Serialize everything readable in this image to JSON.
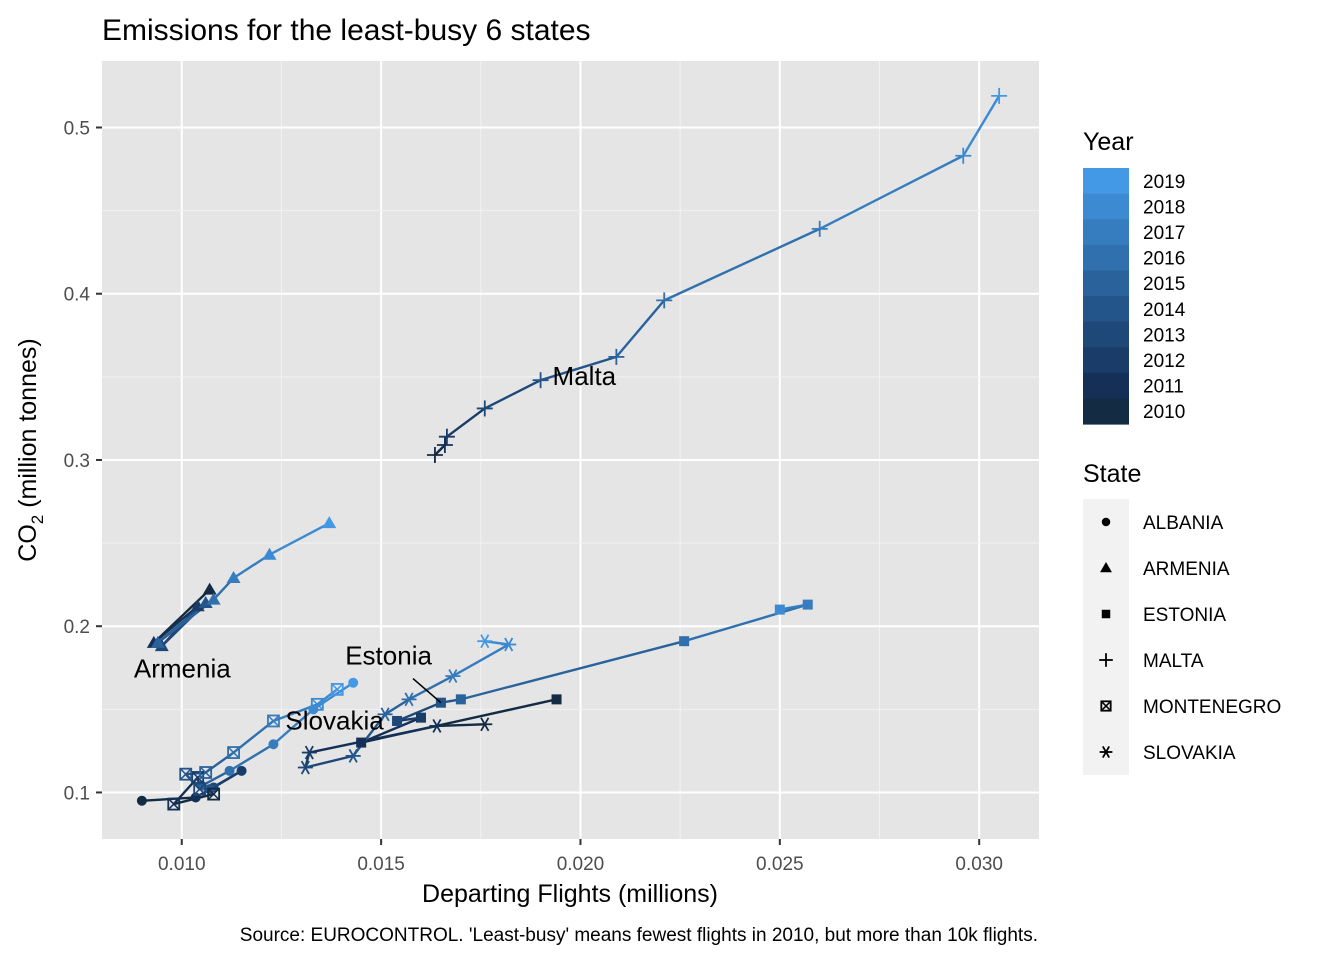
{
  "chart_data": {
    "type": "scatter",
    "title": "Emissions for the least-busy 6 states",
    "xlabel": "Departing Flights (millions)",
    "ylabel_main": "CO",
    "ylabel_sub": "2",
    "ylabel_rest": " (million tonnes)",
    "caption": "Source: EUROCONTROL. 'Least-busy' means fewest flights in 2010, but more than 10k flights.",
    "xlim": [
      0.008,
      0.0315
    ],
    "ylim": [
      0.072,
      0.54
    ],
    "x_ticks": [
      {
        "value": 0.01,
        "label": "0.010"
      },
      {
        "value": 0.015,
        "label": "0.015"
      },
      {
        "value": 0.02,
        "label": "0.020"
      },
      {
        "value": 0.025,
        "label": "0.025"
      },
      {
        "value": 0.03,
        "label": "0.030"
      }
    ],
    "y_ticks": [
      {
        "value": 0.1,
        "label": "0.1"
      },
      {
        "value": 0.2,
        "label": "0.2"
      },
      {
        "value": 0.3,
        "label": "0.3"
      },
      {
        "value": 0.4,
        "label": "0.4"
      },
      {
        "value": 0.5,
        "label": "0.5"
      }
    ],
    "grid": true,
    "color_legend": {
      "title": "Year",
      "years": [
        2019,
        2018,
        2017,
        2016,
        2015,
        2014,
        2013,
        2012,
        2011,
        2010
      ],
      "colors": [
        "#4399e5",
        "#3c8bd2",
        "#367dc0",
        "#3070ae",
        "#2a629c",
        "#24558a",
        "#1e4878",
        "#193c68",
        "#143057",
        "#132b43"
      ]
    },
    "shape_legend": {
      "title": "State",
      "items": [
        {
          "label": "ALBANIA",
          "shape": "circle"
        },
        {
          "label": "ARMENIA",
          "shape": "triangle"
        },
        {
          "label": "ESTONIA",
          "shape": "square"
        },
        {
          "label": "MALTA",
          "shape": "plus"
        },
        {
          "label": "MONTENEGRO",
          "shape": "boxcross"
        },
        {
          "label": "SLOVAKIA",
          "shape": "asterisk"
        }
      ]
    },
    "annotations": [
      {
        "text": "Malta",
        "x": 0.0193,
        "y": 0.345,
        "anchor": "start"
      },
      {
        "text": "Armenia",
        "x": 0.0088,
        "y": 0.169,
        "anchor": "start"
      },
      {
        "text": "Estonia",
        "x": 0.0141,
        "y": 0.177,
        "anchor": "start"
      },
      {
        "text": "Slovakia",
        "x": 0.0126,
        "y": 0.138,
        "anchor": "start"
      }
    ],
    "annotation_leaders": [
      {
        "x1": 0.0158,
        "y1": 0.1685,
        "x2": 0.0165,
        "y2": 0.154
      }
    ],
    "series": [
      {
        "name": "ALBANIA",
        "shape": "circle",
        "points": [
          {
            "year": 2010,
            "x": 0.009,
            "y": 0.095
          },
          {
            "year": 2011,
            "x": 0.01035,
            "y": 0.097
          },
          {
            "year": 2012,
            "x": 0.0115,
            "y": 0.113
          },
          {
            "year": 2013,
            "x": 0.0108,
            "y": 0.103
          },
          {
            "year": 2014,
            "x": 0.0107,
            "y": 0.102
          },
          {
            "year": 2015,
            "x": 0.0105,
            "y": 0.104
          },
          {
            "year": 2016,
            "x": 0.0112,
            "y": 0.113
          },
          {
            "year": 2017,
            "x": 0.0123,
            "y": 0.129
          },
          {
            "year": 2018,
            "x": 0.0133,
            "y": 0.15
          },
          {
            "year": 2019,
            "x": 0.0143,
            "y": 0.166
          }
        ]
      },
      {
        "name": "ARMENIA",
        "shape": "triangle",
        "points": [
          {
            "year": 2010,
            "x": 0.0107,
            "y": 0.222
          },
          {
            "year": 2011,
            "x": 0.0093,
            "y": 0.19
          },
          {
            "year": 2012,
            "x": 0.0104,
            "y": 0.212
          },
          {
            "year": 2013,
            "x": 0.0095,
            "y": 0.188
          },
          {
            "year": 2014,
            "x": 0.0106,
            "y": 0.214
          },
          {
            "year": 2015,
            "x": 0.0094,
            "y": 0.19
          },
          {
            "year": 2016,
            "x": 0.0108,
            "y": 0.216
          },
          {
            "year": 2017,
            "x": 0.0113,
            "y": 0.229
          },
          {
            "year": 2018,
            "x": 0.0122,
            "y": 0.243
          },
          {
            "year": 2019,
            "x": 0.0137,
            "y": 0.262
          }
        ]
      },
      {
        "name": "ESTONIA",
        "shape": "square",
        "points": [
          {
            "year": 2010,
            "x": 0.0194,
            "y": 0.156
          },
          {
            "year": 2011,
            "x": 0.0145,
            "y": 0.13
          },
          {
            "year": 2012,
            "x": 0.016,
            "y": 0.145
          },
          {
            "year": 2013,
            "x": 0.0154,
            "y": 0.143
          },
          {
            "year": 2014,
            "x": 0.0165,
            "y": 0.154
          },
          {
            "year": 2015,
            "x": 0.017,
            "y": 0.156
          },
          {
            "year": 2016,
            "x": 0.0226,
            "y": 0.191
          },
          {
            "year": 2017,
            "x": 0.0257,
            "y": 0.213
          },
          {
            "year": 2018,
            "x": 0.025,
            "y": 0.21
          }
        ]
      },
      {
        "name": "MALTA",
        "shape": "plus",
        "points": [
          {
            "year": 2010,
            "x": 0.01635,
            "y": 0.303
          },
          {
            "year": 2011,
            "x": 0.0166,
            "y": 0.309
          },
          {
            "year": 2012,
            "x": 0.01665,
            "y": 0.314
          },
          {
            "year": 2013,
            "x": 0.0176,
            "y": 0.331
          },
          {
            "year": 2014,
            "x": 0.019,
            "y": 0.348
          },
          {
            "year": 2015,
            "x": 0.0209,
            "y": 0.362
          },
          {
            "year": 2016,
            "x": 0.0221,
            "y": 0.396
          },
          {
            "year": 2017,
            "x": 0.026,
            "y": 0.439
          },
          {
            "year": 2018,
            "x": 0.0296,
            "y": 0.483
          },
          {
            "year": 2019,
            "x": 0.0305,
            "y": 0.519
          }
        ]
      },
      {
        "name": "MONTENEGRO",
        "shape": "boxcross",
        "points": [
          {
            "year": 2010,
            "x": 0.0108,
            "y": 0.099
          },
          {
            "year": 2011,
            "x": 0.0098,
            "y": 0.093
          },
          {
            "year": 2012,
            "x": 0.0104,
            "y": 0.109
          },
          {
            "year": 2013,
            "x": 0.01045,
            "y": 0.102
          },
          {
            "year": 2014,
            "x": 0.0101,
            "y": 0.111
          },
          {
            "year": 2015,
            "x": 0.0106,
            "y": 0.112
          },
          {
            "year": 2016,
            "x": 0.0113,
            "y": 0.124
          },
          {
            "year": 2017,
            "x": 0.0123,
            "y": 0.143
          },
          {
            "year": 2018,
            "x": 0.0134,
            "y": 0.153
          },
          {
            "year": 2019,
            "x": 0.0139,
            "y": 0.162
          }
        ]
      },
      {
        "name": "SLOVAKIA",
        "shape": "asterisk",
        "points": [
          {
            "year": 2010,
            "x": 0.0176,
            "y": 0.141
          },
          {
            "year": 2011,
            "x": 0.0164,
            "y": 0.14
          },
          {
            "year": 2012,
            "x": 0.0132,
            "y": 0.124
          },
          {
            "year": 2013,
            "x": 0.0131,
            "y": 0.115
          },
          {
            "year": 2014,
            "x": 0.0143,
            "y": 0.122
          },
          {
            "year": 2015,
            "x": 0.0151,
            "y": 0.147
          },
          {
            "year": 2016,
            "x": 0.0157,
            "y": 0.156
          },
          {
            "year": 2017,
            "x": 0.0168,
            "y": 0.17
          },
          {
            "year": 2018,
            "x": 0.0182,
            "y": 0.189
          },
          {
            "year": 2019,
            "x": 0.0176,
            "y": 0.191
          }
        ]
      }
    ]
  }
}
